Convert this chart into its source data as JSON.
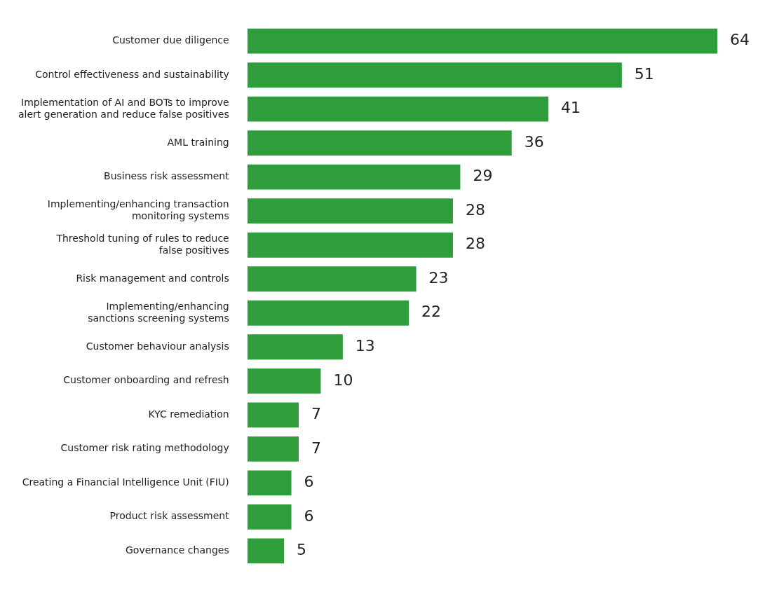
{
  "chart_data": {
    "type": "bar",
    "orientation": "horizontal",
    "categories": [
      "Customer due diligence",
      "Control effectiveness and sustainability",
      "Implementation of AI and BOTs to improve\nalert generation and reduce false positives",
      "AML training",
      "Business risk assessment",
      "Implementing/enhancing transaction\nmonitoring systems",
      "Threshold tuning of rules to reduce\nfalse positives",
      "Risk management and controls",
      "Implementing/enhancing\nsanctions screening systems",
      "Customer behaviour analysis",
      "Customer onboarding and refresh",
      "KYC remediation",
      "Customer risk rating methodology",
      "Creating a Financial Intelligence Unit (FIU)",
      "Product risk assessment",
      "Governance changes"
    ],
    "values": [
      64,
      51,
      41,
      36,
      29,
      28,
      28,
      23,
      22,
      13,
      10,
      7,
      7,
      6,
      6,
      5
    ],
    "color": "#2e9e3c",
    "data_labels": true,
    "legend": false
  }
}
